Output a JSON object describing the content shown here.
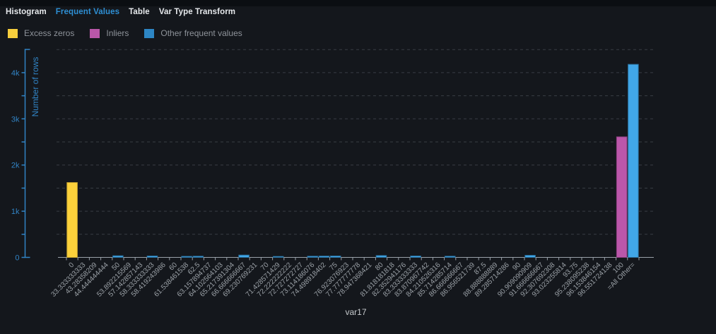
{
  "tabs": {
    "items": [
      {
        "label": "Histogram",
        "active": false
      },
      {
        "label": "Frequent Values",
        "active": true
      },
      {
        "label": "Table",
        "active": false
      },
      {
        "label": "Var Type Transform",
        "active": false
      }
    ]
  },
  "legend": {
    "items": [
      {
        "label": "Excess zeros",
        "color": "#f6ce3d",
        "key": "excess_zeros"
      },
      {
        "label": "Inliers",
        "color": "#b957a9",
        "key": "inliers"
      },
      {
        "label": "Other frequent values",
        "color": "#2d86c4",
        "key": "other"
      }
    ]
  },
  "colors": {
    "background": "#14171c",
    "top_strip": "#0b0e12",
    "tab_active_blue": "#2e8fd4",
    "tab_inactive": "#e6e9ec",
    "axis_blue": "#3183c4",
    "gridline": "#383d44",
    "x_axis_gray": "#99a0a8",
    "x_tick_label": "#9aa0a6",
    "legend_label": "#8e939a",
    "bar_yellow": "#fcd13b",
    "bar_magenta": "#bb57aa",
    "bar_blue": "#41a7e8"
  },
  "chart_data": {
    "type": "bar",
    "title": "",
    "xlabel": "var17",
    "ylabel": "Number of rows",
    "ylim": [
      0,
      4500
    ],
    "yticks": [
      [
        0,
        "0"
      ],
      [
        1000,
        "1k"
      ],
      [
        2000,
        "2k"
      ],
      [
        3000,
        "3k"
      ],
      [
        4000,
        "4k"
      ]
    ],
    "minor_tick_interval": 500,
    "grid": {
      "horizontal": true,
      "interval": 500,
      "style": "dashed"
    },
    "legend_position": "top-left",
    "categories": [
      "0",
      "33.333333333",
      "43.28358209",
      "44.444444444",
      "50",
      "53.892215569",
      "57.142857143",
      "58.333333333",
      "58.419243986",
      "60",
      "61.538461538",
      "62.5",
      "63.157894737",
      "64.102564103",
      "65.217391304",
      "66.666666667",
      "69.230769231",
      "70",
      "71.428571429",
      "72.222222222",
      "72.727272727",
      "73.114186076",
      "74.498918402",
      "75",
      "76.923076923",
      "77.777777778",
      "78.947368421",
      "80",
      "81.818181818",
      "82.352941176",
      "83.333333333",
      "83.870967742",
      "84.210526316",
      "85.714285714",
      "86.666666667",
      "86.956521739",
      "87.5",
      "88.888888889",
      "89.285714286",
      "90",
      "90.909090909",
      "91.666666667",
      "92.307692308",
      "93.023255814",
      "93.75",
      "95.238095238",
      "96.153846154",
      "96.551724138",
      "100",
      "=All Other="
    ],
    "values": [
      1620,
      0,
      0,
      0,
      35,
      0,
      0,
      30,
      0,
      0,
      22,
      25,
      0,
      0,
      0,
      50,
      0,
      0,
      20,
      0,
      0,
      25,
      28,
      30,
      0,
      0,
      0,
      40,
      0,
      0,
      30,
      0,
      0,
      25,
      0,
      0,
      0,
      0,
      0,
      0,
      45,
      0,
      0,
      0,
      0,
      0,
      0,
      0,
      2610,
      4180
    ],
    "groups": [
      "excess_zeros",
      "other",
      "other",
      "other",
      "other",
      "other",
      "other",
      "other",
      "other",
      "other",
      "other",
      "other",
      "other",
      "other",
      "other",
      "other",
      "other",
      "other",
      "other",
      "other",
      "other",
      "other",
      "other",
      "other",
      "other",
      "other",
      "other",
      "other",
      "other",
      "other",
      "other",
      "other",
      "other",
      "other",
      "other",
      "other",
      "other",
      "other",
      "other",
      "other",
      "other",
      "other",
      "other",
      "other",
      "other",
      "other",
      "other",
      "other",
      "inliers",
      "other"
    ],
    "group_styles": {
      "excess_zeros": {
        "label": "Excess zeros",
        "fill": "#fcd13b",
        "stroke": "#c9a52f"
      },
      "inliers": {
        "label": "Inliers",
        "fill": "#bb57aa",
        "stroke": "#8d4080"
      },
      "other": {
        "label": "Other frequent values",
        "fill": "#41a7e8",
        "stroke": "#2b6f9c"
      }
    }
  }
}
